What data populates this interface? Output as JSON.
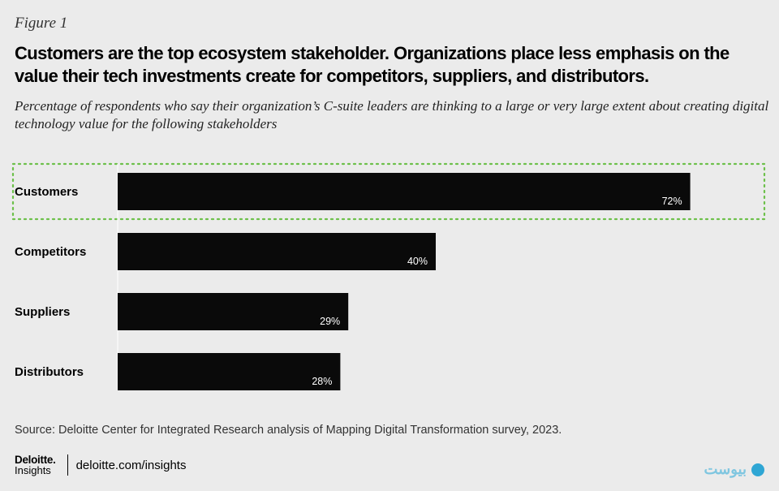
{
  "figure_label": "Figure 1",
  "title": "Customers are the top ecosystem stakeholder. Organizations place less emphasis on the value their tech investments create for competitors, suppliers, and distributors.",
  "subtitle": "Percentage of respondents who say their organization’s C-suite leaders are thinking to a large or very large extent about creating digital technology value for the following stakeholders",
  "source": "Source: Deloitte Center for Integrated Research analysis of Mapping Digital Transformation survey, 2023.",
  "brand": {
    "logo_name": "Deloitte",
    "logo_sub": "Insights",
    "url": "deloitte.com/insights"
  },
  "watermark_text": "بیوست",
  "colors": {
    "bar": "#0a0a0a",
    "highlight": "#6cc04a",
    "background": "#ebebeb"
  },
  "chart_data": {
    "type": "bar",
    "orientation": "horizontal",
    "categories": [
      "Customers",
      "Competitors",
      "Suppliers",
      "Distributors"
    ],
    "values": [
      72,
      40,
      29,
      28
    ],
    "value_labels": [
      "72%",
      "40%",
      "29%",
      "28%"
    ],
    "unit": "%",
    "xlim": [
      0,
      100
    ],
    "highlighted_category": "Customers",
    "grid": false,
    "legend": "none"
  }
}
